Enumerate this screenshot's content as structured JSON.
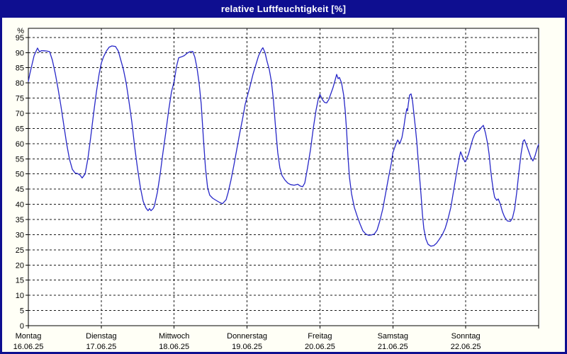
{
  "window": {
    "title": "relative Luftfeuchtigkeit [%]"
  },
  "colors": {
    "titlebar_bg": "#0e0e90",
    "titlebar_text": "#ffffff",
    "window_border": "#0e0e90",
    "outer_bg": "#fffff6",
    "plot_bg": "#ffffff",
    "grid": "#1a1a1a",
    "axis": "#000000",
    "line": "#2828c8"
  },
  "chart_data": {
    "type": "line",
    "title": "relative Luftfeuchtigkeit [%]",
    "ylabel": "%",
    "unit_label": "%",
    "ylim": [
      0,
      98
    ],
    "y_ticks": [
      0,
      5,
      10,
      15,
      20,
      25,
      30,
      35,
      40,
      45,
      50,
      55,
      60,
      65,
      70,
      75,
      80,
      85,
      90,
      95
    ],
    "grid": "dashed, horizontal every 5%, vertical at day boundaries",
    "legend_position": "none",
    "hours_total": 168,
    "x_days": [
      {
        "name": "Montag",
        "date": "16.06.25"
      },
      {
        "name": "Dienstag",
        "date": "17.06.25"
      },
      {
        "name": "Mittwoch",
        "date": "18.06.25"
      },
      {
        "name": "Donnerstag",
        "date": "19.06.25"
      },
      {
        "name": "Freitag",
        "date": "20.06.25"
      },
      {
        "name": "Samstag",
        "date": "21.06.25"
      },
      {
        "name": "Sonntag",
        "date": "22.06.25"
      }
    ],
    "series": [
      {
        "name": "relative Luftfeuchtigkeit",
        "points": [
          [
            0,
            80.5
          ],
          [
            0.5,
            83
          ],
          [
            1.2,
            86
          ],
          [
            1.9,
            89
          ],
          [
            3,
            91.5
          ],
          [
            3.7,
            90.2
          ],
          [
            4.2,
            90.6
          ],
          [
            5.1,
            90.6
          ],
          [
            6.1,
            90.5
          ],
          [
            7,
            90.3
          ],
          [
            7.9,
            87.5
          ],
          [
            8.9,
            83
          ],
          [
            9.8,
            78
          ],
          [
            10.7,
            72.5
          ],
          [
            11.7,
            66
          ],
          [
            12.6,
            60
          ],
          [
            13.5,
            55
          ],
          [
            14.5,
            51.5
          ],
          [
            15.4,
            50.3
          ],
          [
            16.3,
            50.1
          ],
          [
            17,
            49.6
          ],
          [
            17.7,
            48.7
          ],
          [
            18.7,
            50
          ],
          [
            19.6,
            55
          ],
          [
            20.5,
            62
          ],
          [
            21.5,
            70
          ],
          [
            22.4,
            77
          ],
          [
            23.3,
            83
          ],
          [
            24,
            86.5
          ],
          [
            24.7,
            88.5
          ],
          [
            25.7,
            90.5
          ],
          [
            26.6,
            91.8
          ],
          [
            27.5,
            92.2
          ],
          [
            28.7,
            92
          ],
          [
            29.6,
            90.5
          ],
          [
            30.3,
            88
          ],
          [
            31.3,
            84.5
          ],
          [
            32.2,
            80
          ],
          [
            33.1,
            74
          ],
          [
            34.1,
            67
          ],
          [
            35,
            59
          ],
          [
            35.9,
            52
          ],
          [
            36.9,
            45.5
          ],
          [
            37.8,
            41
          ],
          [
            38.7,
            38.8
          ],
          [
            39.4,
            37.9
          ],
          [
            39.9,
            38.6
          ],
          [
            40.4,
            37.9
          ],
          [
            41.1,
            38.6
          ],
          [
            41.5,
            39.5
          ],
          [
            42.5,
            44
          ],
          [
            43.4,
            50
          ],
          [
            44.3,
            57
          ],
          [
            45.3,
            64
          ],
          [
            46.2,
            71
          ],
          [
            47.1,
            77
          ],
          [
            48,
            80.5
          ],
          [
            48.8,
            85.5
          ],
          [
            49.5,
            88.3
          ],
          [
            50.4,
            88.6
          ],
          [
            51.3,
            89
          ],
          [
            52.3,
            89.8
          ],
          [
            53.2,
            90.3
          ],
          [
            54.1,
            90.4
          ],
          [
            54.8,
            88.5
          ],
          [
            55.5,
            85
          ],
          [
            56.2,
            80
          ],
          [
            56.9,
            73
          ],
          [
            57.6,
            62
          ],
          [
            58.3,
            52
          ],
          [
            59,
            45.5
          ],
          [
            59.7,
            43
          ],
          [
            60.7,
            42
          ],
          [
            61.8,
            41.3
          ],
          [
            63,
            40.6
          ],
          [
            63.9,
            40.2
          ],
          [
            65.1,
            41.5
          ],
          [
            65.8,
            44
          ],
          [
            66.7,
            48
          ],
          [
            67.7,
            53
          ],
          [
            68.6,
            58
          ],
          [
            69.5,
            63
          ],
          [
            70.5,
            68
          ],
          [
            71.4,
            73
          ],
          [
            72,
            75.3
          ],
          [
            73,
            79
          ],
          [
            74,
            83
          ],
          [
            74.9,
            86
          ],
          [
            75.8,
            89
          ],
          [
            76.8,
            91
          ],
          [
            77.2,
            91.6
          ],
          [
            77.9,
            90
          ],
          [
            78.6,
            87
          ],
          [
            79.3,
            84.5
          ],
          [
            80,
            80.5
          ],
          [
            80.7,
            74
          ],
          [
            81.4,
            65
          ],
          [
            82.1,
            57
          ],
          [
            82.8,
            52
          ],
          [
            83.5,
            49.5
          ],
          [
            84.5,
            48
          ],
          [
            85.4,
            47
          ],
          [
            86.3,
            46.5
          ],
          [
            87.5,
            46.3
          ],
          [
            88.7,
            46.6
          ],
          [
            89.6,
            46
          ],
          [
            90.3,
            45.8
          ],
          [
            91,
            47
          ],
          [
            91.9,
            52
          ],
          [
            92.9,
            58
          ],
          [
            93.8,
            65
          ],
          [
            94.7,
            71
          ],
          [
            95.4,
            74.5
          ],
          [
            96,
            76.2
          ],
          [
            96.8,
            74.5
          ],
          [
            97.5,
            73.6
          ],
          [
            98.2,
            73.4
          ],
          [
            98.9,
            74.5
          ],
          [
            99.6,
            76.5
          ],
          [
            100.3,
            78.5
          ],
          [
            101,
            81
          ],
          [
            101.5,
            82.8
          ],
          [
            102,
            81.4
          ],
          [
            102.4,
            81.8
          ],
          [
            103.1,
            80
          ],
          [
            103.8,
            76
          ],
          [
            104.3,
            71
          ],
          [
            104.8,
            64
          ],
          [
            105.2,
            56
          ],
          [
            105.7,
            49
          ],
          [
            106.4,
            43.5
          ],
          [
            107.3,
            39
          ],
          [
            108.3,
            36
          ],
          [
            109.2,
            33.5
          ],
          [
            110.1,
            31.3
          ],
          [
            111.1,
            30.2
          ],
          [
            112,
            29.8
          ],
          [
            112.9,
            29.9
          ],
          [
            113.9,
            30.2
          ],
          [
            114.8,
            31.5
          ],
          [
            115.7,
            34.5
          ],
          [
            116.7,
            38.5
          ],
          [
            117.6,
            43.5
          ],
          [
            118.5,
            48.5
          ],
          [
            119.5,
            53.5
          ],
          [
            120,
            57
          ],
          [
            120.9,
            59.5
          ],
          [
            121.6,
            61.2
          ],
          [
            122.3,
            60
          ],
          [
            123,
            62
          ],
          [
            123.7,
            66
          ],
          [
            124.1,
            69
          ],
          [
            124.6,
            71.5
          ],
          [
            124.8,
            70.8
          ],
          [
            125.1,
            73
          ],
          [
            125.5,
            76
          ],
          [
            126,
            76.4
          ],
          [
            126.5,
            74
          ],
          [
            126.9,
            70
          ],
          [
            127.4,
            65.5
          ],
          [
            127.9,
            60.5
          ],
          [
            128.3,
            55
          ],
          [
            128.8,
            49
          ],
          [
            129.3,
            43
          ],
          [
            129.7,
            37
          ],
          [
            130.2,
            32
          ],
          [
            130.9,
            28.5
          ],
          [
            131.6,
            26.8
          ],
          [
            132.5,
            26.2
          ],
          [
            133.5,
            26.4
          ],
          [
            134.4,
            27.2
          ],
          [
            135.3,
            28.5
          ],
          [
            136.3,
            30
          ],
          [
            137.2,
            32
          ],
          [
            138.1,
            35
          ],
          [
            139.1,
            39
          ],
          [
            140,
            44.5
          ],
          [
            140.9,
            50
          ],
          [
            141.9,
            55.5
          ],
          [
            142.3,
            57.3
          ],
          [
            143,
            55.5
          ],
          [
            143.7,
            54
          ],
          [
            144,
            54.2
          ],
          [
            144.9,
            56.5
          ],
          [
            145.6,
            59
          ],
          [
            146.3,
            61.5
          ],
          [
            147,
            63.2
          ],
          [
            147.7,
            64
          ],
          [
            148.4,
            64.3
          ],
          [
            149.1,
            65.3
          ],
          [
            149.8,
            66
          ],
          [
            150.5,
            63.5
          ],
          [
            151.2,
            60
          ],
          [
            151.7,
            56.5
          ],
          [
            152.1,
            52
          ],
          [
            152.6,
            48
          ],
          [
            153.1,
            44.5
          ],
          [
            153.5,
            42.3
          ],
          [
            154.2,
            41.3
          ],
          [
            154.7,
            41.8
          ],
          [
            155.4,
            40
          ],
          [
            156.1,
            37.5
          ],
          [
            156.8,
            35.8
          ],
          [
            157.7,
            34.5
          ],
          [
            158.7,
            34.4
          ],
          [
            159.4,
            35.5
          ],
          [
            160.1,
            38.5
          ],
          [
            160.8,
            44
          ],
          [
            161.5,
            50.5
          ],
          [
            162.2,
            56.5
          ],
          [
            162.9,
            60.8
          ],
          [
            163.3,
            61.3
          ],
          [
            164,
            59.5
          ],
          [
            164.7,
            57.5
          ],
          [
            165.4,
            55.5
          ],
          [
            166.1,
            54.3
          ],
          [
            166.8,
            56
          ],
          [
            167.5,
            58.5
          ],
          [
            168,
            59.8
          ]
        ]
      }
    ]
  }
}
